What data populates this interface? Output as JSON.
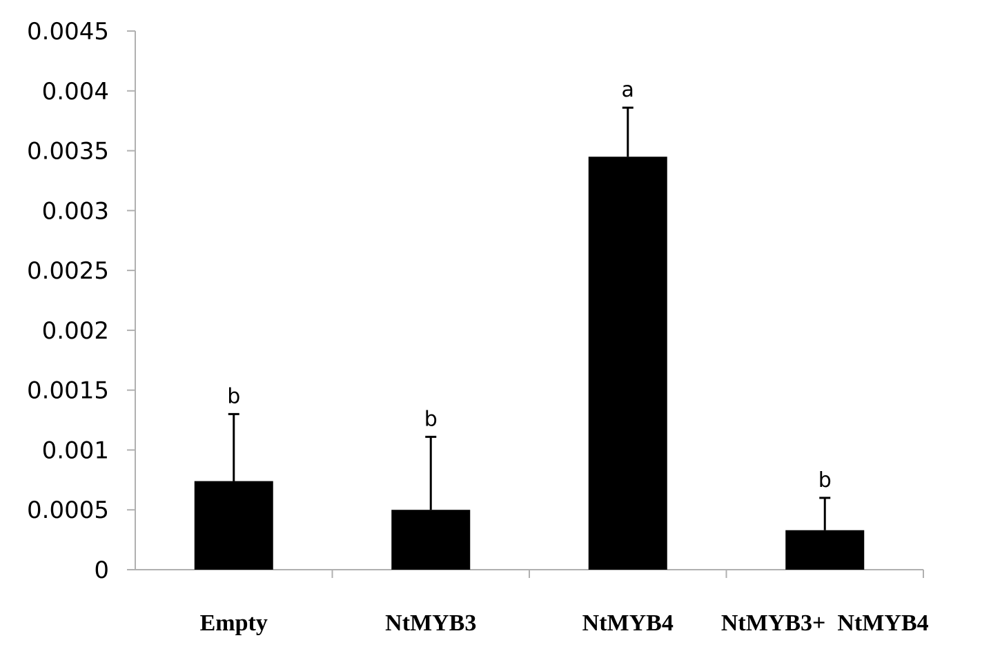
{
  "chart_data": {
    "type": "bar",
    "categories": [
      "Empty",
      "NtMYB3",
      "NtMYB4",
      "NtMYB3+  NtMYB4"
    ],
    "values": [
      0.00074,
      0.0005,
      0.00345,
      0.00033
    ],
    "error_upper": [
      0.0013,
      0.00111,
      0.00386,
      0.0006
    ],
    "significance_letters": [
      "b",
      "b",
      "a",
      "b"
    ],
    "ylim": [
      0,
      0.0045
    ],
    "yticks": [
      0,
      0.0005,
      0.001,
      0.0015,
      0.002,
      0.0025,
      0.003,
      0.0035,
      0.004,
      0.0045
    ],
    "ytick_labels": [
      "0",
      "0.0005",
      "0.001",
      "0.0015",
      "0.002",
      "0.0025",
      "0.003",
      "0.0035",
      "0.004",
      "0.0045"
    ],
    "title": "",
    "xlabel": "",
    "ylabel": "",
    "grid": false,
    "bar_color": "#000000",
    "axis_color": "#b0b0b0"
  }
}
